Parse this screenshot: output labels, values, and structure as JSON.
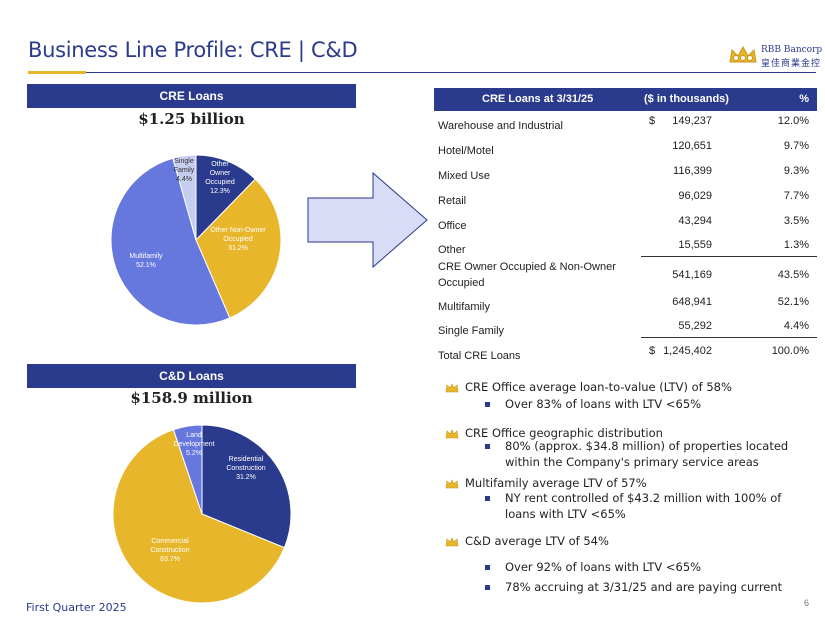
{
  "header": {
    "title": "Business Line Profile:  CRE | C&D",
    "logo_en": "RBB Bancorp",
    "logo_cn": "皇佳商業金控"
  },
  "cre_panel": {
    "bar_label": "CRE Loans",
    "amount": "$1.25 billion"
  },
  "cd_panel": {
    "bar_label": "C&D Loans",
    "amount": "$158.9 million"
  },
  "cre_table": {
    "headers": [
      "CRE Loans at 3/31/25",
      "($ in thousands)",
      "%"
    ],
    "rows": [
      {
        "label": "Warehouse and Industrial",
        "dollar": "$",
        "amount": "149,237",
        "pct": "12.0%"
      },
      {
        "label": "Hotel/Motel",
        "dollar": "",
        "amount": "120,651",
        "pct": "9.7%"
      },
      {
        "label": "Mixed Use",
        "dollar": "",
        "amount": "116,399",
        "pct": "9.3%"
      },
      {
        "label": "Retail",
        "dollar": "",
        "amount": "96,029",
        "pct": "7.7%"
      },
      {
        "label": "Office",
        "dollar": "",
        "amount": "43,294",
        "pct": "3.5%"
      },
      {
        "label": "Other",
        "dollar": "",
        "amount": "15,559",
        "pct": "1.3%"
      },
      {
        "label_line1": "CRE Owner Occupied & Non-Owner",
        "label_line2": "Occupied",
        "dollar": "",
        "amount": "541,169",
        "pct": "43.5%"
      },
      {
        "label": "Multifamily",
        "dollar": "",
        "amount": "648,941",
        "pct": "52.1%"
      },
      {
        "label": "Single Family",
        "dollar": "",
        "amount": "55,292",
        "pct": "4.4%"
      },
      {
        "label": "Total CRE Loans",
        "dollar": "$",
        "amount": "1,245,402",
        "pct": "100.0%"
      }
    ]
  },
  "bullets": [
    {
      "text": "CRE Office average loan-to-value (LTV) of 58%",
      "subs": [
        "Over 83% of loans with LTV <65%"
      ]
    },
    {
      "text": "CRE Office geographic distribution",
      "subs": [
        "80% (approx. $34.8 million) of properties located",
        "within the Company's primary service areas"
      ]
    },
    {
      "text": "Multifamily average LTV of 57%",
      "subs": [
        "NY rent controlled of $43.2 million with 100% of",
        "loans with LTV <65%"
      ]
    },
    {
      "text": "C&D average LTV of 54%",
      "subs": [
        "Over 92% of loans with LTV <65%",
        "78% accruing at 3/31/25 and are paying current"
      ]
    }
  ],
  "footer": {
    "quarter": "First Quarter 2025",
    "page": "6"
  },
  "colors": {
    "navy": "#2a3a8c",
    "gold": "#e8b62a",
    "periwinkle": "#6677dd",
    "lavender": "#c5cdf0"
  },
  "chart_data": [
    {
      "type": "pie",
      "title": "",
      "slices": [
        {
          "label_lines": [
            "Other",
            "Owner",
            "Occupied",
            "12.3%"
          ],
          "value": 12.3,
          "color": "#2a3a8c"
        },
        {
          "label_lines": [
            "Other Non-Owner",
            "Occupied",
            "31.2%"
          ],
          "value": 31.2,
          "color": "#e8b62a"
        },
        {
          "label_lines": [
            "Multifamily",
            "52.1%"
          ],
          "value": 52.1,
          "color": "#6677dd"
        },
        {
          "label_lines": [
            "Single",
            "Family",
            "4.4%"
          ],
          "value": 4.4,
          "color": "#c5cdf0"
        }
      ]
    },
    {
      "type": "pie",
      "title": "",
      "slices": [
        {
          "label_lines": [
            "Residential",
            "Construction",
            "31.2%"
          ],
          "value": 31.2,
          "color": "#2a3a8c"
        },
        {
          "label_lines": [
            "Commercial",
            "Construction",
            "63.7%"
          ],
          "value": 63.7,
          "color": "#e8b62a"
        },
        {
          "label_lines": [
            "Land",
            "Development",
            "5.2%"
          ],
          "value": 5.2,
          "color": "#6677dd"
        }
      ]
    }
  ]
}
